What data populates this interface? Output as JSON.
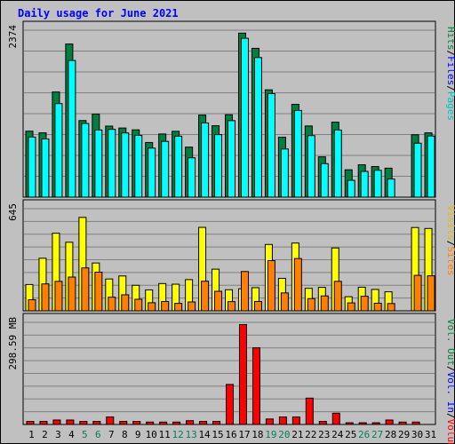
{
  "chart_data": {
    "type": "bar",
    "title": "Daily usage for June 2021",
    "categories": [
      "1",
      "2",
      "3",
      "4",
      "5",
      "6",
      "7",
      "8",
      "9",
      "10",
      "11",
      "12",
      "13",
      "14",
      "15",
      "16",
      "17",
      "18",
      "19",
      "20",
      "21",
      "22",
      "23",
      "24",
      "25",
      "26",
      "27",
      "28",
      "29",
      "30",
      "31"
    ],
    "weekend_days": [
      "5",
      "6",
      "12",
      "13",
      "19",
      "20",
      "26",
      "27"
    ],
    "panels": [
      {
        "id": "top",
        "max_label": "2374",
        "ylim": [
          0,
          2374
        ],
        "series": [
          {
            "name": "Hits",
            "color": "#008040",
            "values": [
              938,
              914,
              1496,
              2178,
              1089,
              1180,
              1010,
              983,
              957,
              777,
              898,
              936,
              711,
              1168,
              1015,
              1172,
              2332,
              2116,
              1526,
              853,
              1320,
              1012,
              573,
              1066,
              389,
              460,
              435,
              412,
              0,
              887,
              914
            ]
          },
          {
            "name": "Files",
            "color": "#0000ff",
            "values": [
              0,
              0,
              0,
              0,
              0,
              0,
              0,
              0,
              0,
              0,
              0,
              0,
              0,
              0,
              0,
              0,
              0,
              0,
              0,
              0,
              0,
              0,
              0,
              0,
              0,
              0,
              0,
              0,
              0,
              0,
              0
            ]
          },
          {
            "name": "Pages",
            "color": "#00ffff",
            "values": [
              854,
              827,
              1330,
              1943,
              1047,
              955,
              964,
              913,
              878,
              697,
              793,
              867,
              559,
              1055,
              889,
              1088,
              2259,
              1985,
              1472,
              685,
              1233,
              875,
              476,
              954,
              239,
              366,
              382,
              257,
              0,
              767,
              869
            ]
          }
        ]
      },
      {
        "id": "middle",
        "max_label": "645",
        "ylim": [
          0,
          645
        ],
        "series": [
          {
            "name": "Visits",
            "color": "#ffff00",
            "values": [
              166,
              332,
              490,
              433,
              590,
              302,
              201,
              220,
              161,
              132,
              172,
              168,
              197,
              527,
              263,
              133,
              139,
              146,
              419,
              205,
              428,
              142,
              148,
              397,
              89,
              149,
              135,
              120,
              0,
              526,
              520
            ]
          },
          {
            "name": "Sites",
            "color": "#ff8000",
            "values": [
              70,
              170,
              186,
              213,
              271,
              244,
              86,
              101,
              73,
              51,
              59,
              47,
              56,
              187,
              123,
              58,
              248,
              59,
              317,
              113,
              330,
              77,
              94,
              186,
              50,
              92,
              48,
              46,
              0,
              224,
              221
            ]
          },
          {
            "name": "Vol. Out",
            "color": "#008040",
            "values": [
              0,
              0,
              0,
              0,
              0,
              0,
              0,
              0,
              0,
              0,
              0,
              0,
              0,
              0,
              0,
              0,
              0,
              0,
              0,
              0,
              0,
              0,
              0,
              0,
              0,
              0,
              0,
              0,
              0,
              0,
              0
            ]
          }
        ]
      },
      {
        "id": "bottom",
        "max_label": "298.59 MB",
        "ylim": [
          0,
          298.59
        ],
        "series": [
          {
            "name": "Vol. In",
            "color": "#0000ff",
            "values": [
              0,
              0,
              0,
              0,
              0,
              0,
              0,
              0,
              0,
              0,
              0,
              0,
              0,
              0,
              0,
              0,
              0,
              0,
              0,
              0,
              0,
              0,
              0,
              0,
              0,
              0,
              0,
              0,
              0,
              0,
              0
            ]
          },
          {
            "name": "Volume",
            "color": "#ff0000",
            "values": [
              9,
              9,
              13,
              13,
              9,
              9,
              22,
              9,
              9,
              7,
              7,
              7,
              11,
              9,
              9,
              117,
              292,
              224,
              16,
              22,
              22,
              77,
              9,
              33,
              5,
              5,
              5,
              13,
              7,
              7,
              0
            ]
          }
        ]
      }
    ],
    "right_labels": [
      {
        "panel": "top",
        "parts": [
          {
            "text": "Hits",
            "color": "#008040"
          },
          {
            "text": "/",
            "color": "#000000"
          },
          {
            "text": "Files",
            "color": "#0000ff"
          },
          {
            "text": "/",
            "color": "#000000"
          },
          {
            "text": "Pages",
            "color": "#00c0c0"
          }
        ]
      },
      {
        "panel": "middle",
        "parts": [
          {
            "text": "Visits",
            "color": "#e0c000"
          },
          {
            "text": "/",
            "color": "#000000"
          },
          {
            "text": "Sites",
            "color": "#ff8000"
          }
        ]
      },
      {
        "panel": "bottom",
        "parts": [
          {
            "text": "Vol. Out",
            "color": "#008040"
          },
          {
            "text": "/",
            "color": "#000000"
          },
          {
            "text": "Vol. In",
            "color": "#0000ff"
          },
          {
            "text": "/",
            "color": "#000000"
          },
          {
            "text": "Volume",
            "color": "#ff0000"
          }
        ]
      }
    ],
    "grid": true,
    "colors": {
      "title": "#0000ff",
      "plot_bg": "#c0c0c0",
      "frame_bg": "#c0c0c0",
      "weekend_label": "#00805c",
      "weekday_label": "#000000"
    }
  }
}
